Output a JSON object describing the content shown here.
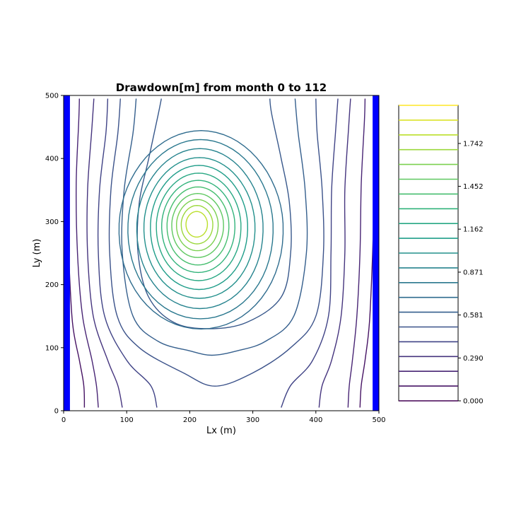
{
  "chart_data": {
    "type": "contour",
    "title": "Drawdown[m] from month 0 to 112",
    "xlabel": "Lx (m)",
    "ylabel": "Ly (m)",
    "xlim": [
      0,
      500
    ],
    "ylim": [
      0,
      500
    ],
    "x_ticks": [
      "0",
      "100",
      "200",
      "300",
      "400",
      "500"
    ],
    "y_ticks": [
      "0",
      "100",
      "200",
      "300",
      "400",
      "500"
    ],
    "grid": false,
    "boundaries": [
      {
        "x_range": [
          0,
          10
        ],
        "color": "#0000ff"
      },
      {
        "x_range": [
          490,
          500
        ],
        "color": "#0000ff"
      }
    ],
    "drawdown_peak": {
      "x": 210,
      "y": 297
    },
    "contour_levels": {
      "min": 0.0,
      "max": 2.0,
      "count": 21
    },
    "colorbar": {
      "ticks": [
        "0.000",
        "0.290",
        "0.581",
        "0.871",
        "1.162",
        "1.452",
        "1.742"
      ],
      "colormap": "viridis"
    },
    "contours": [
      {
        "level": 0.1,
        "kind": "open",
        "points": [
          [
            2,
            500
          ],
          [
            2,
            480
          ],
          [
            5,
            360
          ],
          [
            8,
            250
          ],
          [
            14,
            140
          ],
          [
            25,
            80
          ],
          [
            32,
            40
          ],
          [
            33,
            5
          ]
        ]
      },
      {
        "level": 0.2,
        "kind": "open",
        "points": [
          [
            25,
            495
          ],
          [
            24,
            460
          ],
          [
            20,
            360
          ],
          [
            22,
            250
          ],
          [
            30,
            150
          ],
          [
            45,
            80
          ],
          [
            52,
            40
          ],
          [
            55,
            5
          ]
        ]
      },
      {
        "level": 0.3,
        "kind": "open",
        "points": [
          [
            48,
            495
          ],
          [
            45,
            450
          ],
          [
            38,
            350
          ],
          [
            38,
            250
          ],
          [
            47,
            150
          ],
          [
            70,
            80
          ],
          [
            86,
            40
          ],
          [
            93,
            5
          ]
        ]
      },
      {
        "level": 0.4,
        "kind": "open",
        "points": [
          [
            70,
            495
          ],
          [
            67,
            440
          ],
          [
            57,
            350
          ],
          [
            55,
            250
          ],
          [
            65,
            150
          ],
          [
            100,
            80
          ],
          [
            138,
            40
          ],
          [
            148,
            5
          ]
        ]
      },
      {
        "level": 0.5,
        "kind": "open",
        "points": [
          [
            90,
            495
          ],
          [
            86,
            440
          ],
          [
            75,
            350
          ],
          [
            73,
            250
          ],
          [
            85,
            150
          ],
          [
            120,
            100
          ],
          [
            190,
            60
          ],
          [
            240,
            39
          ],
          [
            300,
            60
          ],
          [
            360,
            100
          ],
          [
            400,
            150
          ],
          [
            412,
            250
          ],
          [
            410,
            350
          ],
          [
            402,
            440
          ],
          [
            400,
            495
          ]
        ]
      },
      {
        "level": 0.6,
        "kind": "open",
        "points": [
          [
            115,
            495
          ],
          [
            110,
            440
          ],
          [
            96,
            350
          ],
          [
            93,
            250
          ],
          [
            110,
            150
          ],
          [
            150,
            110
          ],
          [
            200,
            95
          ],
          [
            235,
            88
          ],
          [
            275,
            95
          ],
          [
            320,
            110
          ],
          [
            365,
            150
          ],
          [
            385,
            250
          ],
          [
            383,
            350
          ],
          [
            372,
            440
          ],
          [
            367,
            495
          ]
        ]
      },
      {
        "level": 0.1,
        "kind": "open",
        "points": [
          [
            498,
            500
          ],
          [
            497,
            480
          ],
          [
            493,
            360
          ],
          [
            490,
            250
          ],
          [
            485,
            140
          ],
          [
            478,
            80
          ],
          [
            472,
            40
          ],
          [
            470,
            5
          ]
        ]
      },
      {
        "level": 0.2,
        "kind": "open",
        "points": [
          [
            478,
            495
          ],
          [
            477,
            460
          ],
          [
            472,
            360
          ],
          [
            470,
            250
          ],
          [
            465,
            150
          ],
          [
            458,
            80
          ],
          [
            453,
            40
          ],
          [
            451,
            5
          ]
        ]
      },
      {
        "level": 0.3,
        "kind": "open",
        "points": [
          [
            455,
            495
          ],
          [
            452,
            450
          ],
          [
            446,
            350
          ],
          [
            446,
            250
          ],
          [
            440,
            150
          ],
          [
            425,
            80
          ],
          [
            410,
            40
          ],
          [
            405,
            5
          ]
        ]
      },
      {
        "level": 0.4,
        "kind": "open",
        "points": [
          [
            435,
            495
          ],
          [
            431,
            440
          ],
          [
            425,
            350
          ],
          [
            424,
            250
          ],
          [
            420,
            150
          ],
          [
            395,
            80
          ],
          [
            360,
            40
          ],
          [
            345,
            5
          ]
        ]
      },
      {
        "level": 0.55,
        "kind": "open",
        "points": [
          [
            155,
            495
          ],
          [
            150,
            470
          ],
          [
            135,
            400
          ],
          [
            120,
            330
          ],
          [
            118,
            250
          ],
          [
            135,
            180
          ],
          [
            175,
            140
          ],
          [
            230,
            130
          ],
          [
            290,
            140
          ],
          [
            345,
            180
          ],
          [
            360,
            250
          ],
          [
            358,
            330
          ],
          [
            345,
            400
          ],
          [
            330,
            470
          ],
          [
            327,
            495
          ]
        ]
      }
    ],
    "closed_rings": [
      {
        "level": 0.7,
        "rx": 130,
        "ry": 155
      },
      {
        "level": 0.8,
        "rx": 115,
        "ry": 140
      },
      {
        "level": 0.9,
        "rx": 100,
        "ry": 125
      },
      {
        "level": 1.0,
        "rx": 88,
        "ry": 110
      },
      {
        "level": 1.1,
        "rx": 77,
        "ry": 97
      },
      {
        "level": 1.2,
        "rx": 67,
        "ry": 84
      },
      {
        "level": 1.3,
        "rx": 58,
        "ry": 72
      },
      {
        "level": 1.4,
        "rx": 49,
        "ry": 61
      },
      {
        "level": 1.5,
        "rx": 41,
        "ry": 50
      },
      {
        "level": 1.6,
        "rx": 33,
        "ry": 40
      },
      {
        "level": 1.7,
        "rx": 25,
        "ry": 30
      },
      {
        "level": 1.8,
        "rx": 17,
        "ry": 20
      }
    ]
  }
}
